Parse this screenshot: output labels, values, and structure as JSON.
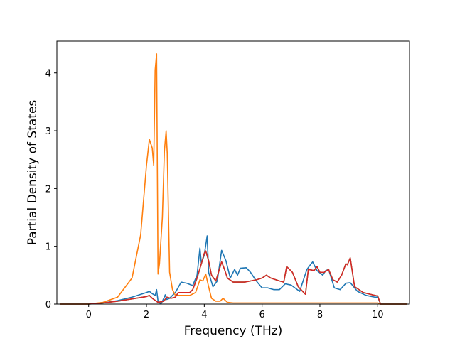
{
  "chart_data": {
    "type": "line",
    "title": "",
    "xlabel": "Frequency (THz)",
    "ylabel": "Partial Density of States",
    "xlim": [
      -1.1,
      11.1
    ],
    "ylim": [
      0,
      4.55
    ],
    "xticks": [
      0,
      2,
      4,
      6,
      8,
      10
    ],
    "yticks": [
      0,
      1,
      2,
      3,
      4
    ],
    "grid": false,
    "legend": "none",
    "series": [
      {
        "color": "#1f77b4",
        "x": [
          -1.0,
          0.0,
          0.5,
          1.0,
          1.5,
          2.0,
          2.1,
          2.2,
          2.3,
          2.35,
          2.4,
          2.5,
          2.6,
          2.65,
          2.7,
          2.8,
          3.0,
          3.2,
          3.4,
          3.6,
          3.75,
          3.85,
          3.9,
          4.0,
          4.1,
          4.15,
          4.3,
          4.45,
          4.6,
          4.75,
          4.9,
          5.05,
          5.15,
          5.25,
          5.45,
          5.6,
          5.8,
          6.0,
          6.2,
          6.4,
          6.6,
          6.8,
          7.0,
          7.3,
          7.55,
          7.7,
          7.75,
          7.9,
          8.1,
          8.2,
          8.3,
          8.5,
          8.7,
          8.9,
          9.05,
          9.3,
          9.6,
          9.9,
          10.0,
          10.1,
          11.0
        ],
        "y": [
          0.0,
          0.0,
          0.02,
          0.06,
          0.12,
          0.2,
          0.22,
          0.18,
          0.15,
          0.25,
          0.05,
          0.0,
          0.1,
          0.16,
          0.08,
          0.1,
          0.2,
          0.38,
          0.36,
          0.32,
          0.5,
          0.97,
          0.7,
          0.85,
          1.18,
          0.55,
          0.3,
          0.4,
          0.93,
          0.75,
          0.45,
          0.6,
          0.5,
          0.62,
          0.63,
          0.55,
          0.4,
          0.28,
          0.28,
          0.25,
          0.25,
          0.35,
          0.33,
          0.22,
          0.6,
          0.7,
          0.73,
          0.58,
          0.5,
          0.58,
          0.6,
          0.28,
          0.25,
          0.36,
          0.37,
          0.22,
          0.15,
          0.12,
          0.12,
          0.0,
          0.0
        ]
      },
      {
        "color": "#ff7f0e",
        "x": [
          -1.0,
          0.0,
          0.5,
          1.0,
          1.5,
          1.8,
          2.0,
          2.1,
          2.2,
          2.25,
          2.3,
          2.35,
          2.4,
          2.45,
          2.55,
          2.62,
          2.68,
          2.72,
          2.8,
          2.9,
          3.0,
          3.2,
          3.5,
          3.7,
          3.85,
          3.95,
          4.05,
          4.15,
          4.25,
          4.4,
          4.55,
          4.65,
          4.8,
          5.0,
          6.0,
          7.0,
          7.5,
          8.0,
          8.5,
          9.0,
          9.5,
          10.0,
          10.1,
          11.0
        ],
        "y": [
          0.0,
          0.0,
          0.03,
          0.12,
          0.45,
          1.2,
          2.4,
          2.85,
          2.7,
          2.4,
          4.05,
          4.33,
          0.52,
          0.7,
          1.5,
          2.65,
          3.0,
          2.6,
          0.55,
          0.25,
          0.15,
          0.15,
          0.15,
          0.2,
          0.42,
          0.4,
          0.52,
          0.3,
          0.1,
          0.05,
          0.05,
          0.1,
          0.03,
          0.02,
          0.02,
          0.02,
          0.02,
          0.02,
          0.02,
          0.02,
          0.02,
          0.02,
          0.0,
          0.0
        ]
      },
      {
        "color": "#2ca02c",
        "x": [
          -1.0,
          0.0,
          0.5,
          1.0,
          1.5,
          2.0,
          2.1,
          2.2,
          2.4,
          2.6,
          2.7,
          2.85,
          3.0,
          3.1,
          3.3,
          3.5,
          3.6,
          3.75,
          3.9,
          4.0,
          4.05,
          4.15,
          4.25,
          4.4,
          4.6,
          4.7,
          4.8,
          5.0,
          5.2,
          5.4,
          5.8,
          6.0,
          6.15,
          6.3,
          6.6,
          6.75,
          6.85,
          7.05,
          7.25,
          7.5,
          7.6,
          7.8,
          7.9,
          8.0,
          8.15,
          8.3,
          8.45,
          8.6,
          8.75,
          8.9,
          8.95,
          9.05,
          9.2,
          9.5,
          9.9,
          10.0,
          10.1,
          11.0
        ],
        "y": [
          0.0,
          0.0,
          0.02,
          0.05,
          0.09,
          0.13,
          0.15,
          0.1,
          0.03,
          0.05,
          0.12,
          0.1,
          0.12,
          0.2,
          0.2,
          0.2,
          0.25,
          0.45,
          0.7,
          0.88,
          0.92,
          0.75,
          0.5,
          0.4,
          0.73,
          0.6,
          0.45,
          0.38,
          0.38,
          0.38,
          0.42,
          0.45,
          0.5,
          0.45,
          0.4,
          0.38,
          0.65,
          0.55,
          0.3,
          0.17,
          0.6,
          0.58,
          0.65,
          0.55,
          0.55,
          0.6,
          0.42,
          0.38,
          0.5,
          0.7,
          0.68,
          0.8,
          0.3,
          0.2,
          0.15,
          0.14,
          0.0,
          0.0
        ]
      },
      {
        "color": "#d62728",
        "x": [
          -1.0,
          0.0,
          0.5,
          1.0,
          1.5,
          2.0,
          2.1,
          2.2,
          2.4,
          2.6,
          2.7,
          2.85,
          3.0,
          3.1,
          3.3,
          3.5,
          3.6,
          3.75,
          3.9,
          4.0,
          4.05,
          4.15,
          4.25,
          4.4,
          4.6,
          4.7,
          4.8,
          5.0,
          5.2,
          5.4,
          5.8,
          6.0,
          6.15,
          6.3,
          6.6,
          6.75,
          6.85,
          7.05,
          7.25,
          7.5,
          7.6,
          7.8,
          7.9,
          8.0,
          8.15,
          8.3,
          8.45,
          8.6,
          8.75,
          8.9,
          8.95,
          9.05,
          9.2,
          9.5,
          9.9,
          10.0,
          10.1,
          11.0
        ],
        "y": [
          0.0,
          0.0,
          0.02,
          0.05,
          0.09,
          0.13,
          0.15,
          0.1,
          0.03,
          0.05,
          0.12,
          0.1,
          0.12,
          0.2,
          0.2,
          0.2,
          0.25,
          0.45,
          0.7,
          0.88,
          0.92,
          0.75,
          0.5,
          0.4,
          0.73,
          0.6,
          0.45,
          0.38,
          0.38,
          0.38,
          0.42,
          0.45,
          0.5,
          0.45,
          0.4,
          0.38,
          0.65,
          0.55,
          0.3,
          0.17,
          0.6,
          0.58,
          0.65,
          0.55,
          0.55,
          0.6,
          0.42,
          0.38,
          0.5,
          0.7,
          0.68,
          0.8,
          0.3,
          0.2,
          0.15,
          0.14,
          0.0,
          0.0
        ]
      }
    ]
  }
}
